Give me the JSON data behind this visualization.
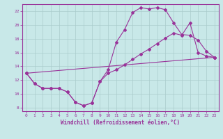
{
  "xlabel": "Windchill (Refroidissement éolien,°C)",
  "bg_color": "#c8e8e8",
  "grid_color": "#aacccc",
  "line_color": "#993399",
  "xlim": [
    -0.5,
    23.5
  ],
  "ylim": [
    7.5,
    23.0
  ],
  "xticks": [
    0,
    1,
    2,
    3,
    4,
    5,
    6,
    7,
    8,
    9,
    10,
    11,
    12,
    13,
    14,
    15,
    16,
    17,
    18,
    19,
    20,
    21,
    22,
    23
  ],
  "yticks": [
    8,
    10,
    12,
    14,
    16,
    18,
    20,
    22
  ],
  "curve1_x": [
    0,
    1,
    2,
    3,
    4,
    5,
    6,
    7,
    8,
    9,
    10,
    11,
    12,
    13,
    14,
    15,
    16,
    17,
    18,
    19,
    20,
    21,
    22,
    23
  ],
  "curve1_y": [
    13.0,
    11.5,
    10.8,
    10.8,
    10.8,
    10.3,
    8.8,
    8.3,
    8.7,
    11.8,
    13.5,
    17.5,
    19.3,
    21.8,
    22.5,
    22.3,
    22.5,
    22.2,
    20.3,
    18.6,
    18.5,
    17.8,
    16.2,
    15.3
  ],
  "curve2_x": [
    0,
    1,
    2,
    3,
    4,
    5,
    6,
    7,
    8,
    9,
    10,
    11,
    12,
    13,
    14,
    15,
    16,
    17,
    18,
    19,
    20,
    21,
    22,
    23
  ],
  "curve2_y": [
    13.0,
    11.5,
    10.8,
    10.8,
    10.8,
    10.3,
    8.8,
    8.3,
    8.7,
    11.8,
    13.0,
    13.5,
    14.2,
    15.0,
    15.8,
    16.5,
    17.3,
    18.1,
    18.8,
    18.5,
    20.3,
    16.0,
    15.5,
    15.3
  ],
  "curve3_x": [
    0,
    23
  ],
  "curve3_y": [
    13.0,
    15.3
  ]
}
